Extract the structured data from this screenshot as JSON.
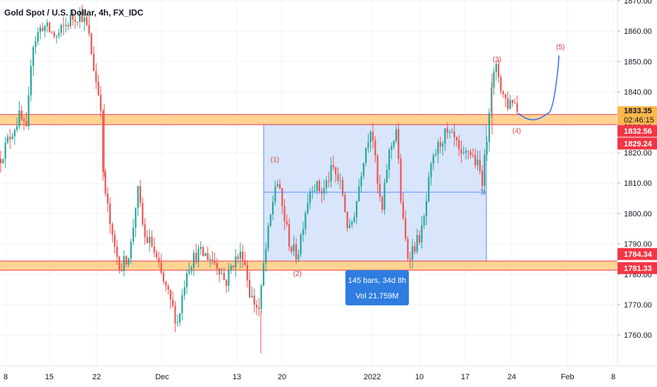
{
  "symbol_title": "Gold Spot / U.S. Dollar, 4h, FX_IDC",
  "chart_data": {
    "type": "candlestick",
    "ylim": [
      1751,
      1871
    ],
    "y_ticks": [
      1760,
      1770,
      1780,
      1790,
      1800,
      1810,
      1820,
      1830,
      1840,
      1850,
      1860,
      1870
    ],
    "y_tick_labels": [
      "1760.00",
      "1770.00",
      "1780.00",
      "1790.00",
      "1800.00",
      "1810.00",
      "1820.00",
      "1830.00",
      "1840.00",
      "1850.00",
      "1860.00",
      "1870.00"
    ],
    "x_ticks": [
      {
        "label": "8"
      },
      {
        "label": "15"
      },
      {
        "label": "22"
      },
      {
        "label": "Dec"
      },
      {
        "label": "13"
      },
      {
        "label": "20"
      },
      {
        "label": "2022"
      },
      {
        "label": "10"
      },
      {
        "label": "17"
      },
      {
        "label": "24"
      },
      {
        "label": "Feb"
      },
      {
        "label": "8"
      }
    ],
    "price_path": [
      {
        "x": 0,
        "y": 1818
      },
      {
        "x": 15,
        "y": 1826
      },
      {
        "x": 28,
        "y": 1832
      },
      {
        "x": 38,
        "y": 1826
      },
      {
        "x": 45,
        "y": 1855
      },
      {
        "x": 60,
        "y": 1862
      },
      {
        "x": 80,
        "y": 1858
      },
      {
        "x": 100,
        "y": 1864
      },
      {
        "x": 115,
        "y": 1866
      },
      {
        "x": 125,
        "y": 1860
      },
      {
        "x": 135,
        "y": 1845
      },
      {
        "x": 143,
        "y": 1836
      },
      {
        "x": 146,
        "y": 1812
      },
      {
        "x": 152,
        "y": 1803
      },
      {
        "x": 160,
        "y": 1790
      },
      {
        "x": 172,
        "y": 1782
      },
      {
        "x": 185,
        "y": 1788
      },
      {
        "x": 195,
        "y": 1808
      },
      {
        "x": 205,
        "y": 1792
      },
      {
        "x": 215,
        "y": 1790
      },
      {
        "x": 225,
        "y": 1782
      },
      {
        "x": 240,
        "y": 1772
      },
      {
        "x": 252,
        "y": 1764
      },
      {
        "x": 265,
        "y": 1782
      },
      {
        "x": 280,
        "y": 1787
      },
      {
        "x": 295,
        "y": 1786
      },
      {
        "x": 310,
        "y": 1783
      },
      {
        "x": 320,
        "y": 1777
      },
      {
        "x": 330,
        "y": 1784
      },
      {
        "x": 345,
        "y": 1787
      },
      {
        "x": 355,
        "y": 1773
      },
      {
        "x": 368,
        "y": 1768
      },
      {
        "x": 374,
        "y": 1783
      },
      {
        "x": 382,
        "y": 1796
      },
      {
        "x": 392,
        "y": 1812
      },
      {
        "x": 402,
        "y": 1800
      },
      {
        "x": 412,
        "y": 1789
      },
      {
        "x": 422,
        "y": 1786
      },
      {
        "x": 432,
        "y": 1800
      },
      {
        "x": 442,
        "y": 1810
      },
      {
        "x": 458,
        "y": 1807
      },
      {
        "x": 472,
        "y": 1815
      },
      {
        "x": 485,
        "y": 1808
      },
      {
        "x": 495,
        "y": 1793
      },
      {
        "x": 505,
        "y": 1803
      },
      {
        "x": 515,
        "y": 1818
      },
      {
        "x": 527,
        "y": 1830
      },
      {
        "x": 535,
        "y": 1810
      },
      {
        "x": 542,
        "y": 1800
      },
      {
        "x": 550,
        "y": 1818
      },
      {
        "x": 562,
        "y": 1828
      },
      {
        "x": 570,
        "y": 1800
      },
      {
        "x": 578,
        "y": 1786
      },
      {
        "x": 590,
        "y": 1790
      },
      {
        "x": 600,
        "y": 1795
      },
      {
        "x": 610,
        "y": 1813
      },
      {
        "x": 618,
        "y": 1820
      },
      {
        "x": 630,
        "y": 1826
      },
      {
        "x": 645,
        "y": 1824
      },
      {
        "x": 655,
        "y": 1817
      },
      {
        "x": 665,
        "y": 1821
      },
      {
        "x": 675,
        "y": 1817
      },
      {
        "x": 685,
        "y": 1811
      },
      {
        "x": 691,
        "y": 1826
      },
      {
        "x": 696,
        "y": 1842
      },
      {
        "x": 705,
        "y": 1848
      },
      {
        "x": 712,
        "y": 1840
      },
      {
        "x": 720,
        "y": 1836
      },
      {
        "x": 728,
        "y": 1838
      },
      {
        "x": 735,
        "y": 1833
      }
    ],
    "projection_path": [
      {
        "x": 735,
        "y": 1833
      },
      {
        "x": 757,
        "y": 1830
      },
      {
        "x": 778,
        "y": 1833
      },
      {
        "x": 788,
        "y": 1843
      },
      {
        "x": 793,
        "y": 1852
      }
    ],
    "zones": [
      {
        "name": "resistance",
        "y_low": 1829.24,
        "y_high": 1832.56
      },
      {
        "name": "support",
        "y_low": 1781.33,
        "y_high": 1784.34
      }
    ],
    "range_box": {
      "y_low": 1784.34,
      "y_high": 1829.24,
      "x_mid_level": 1807
    },
    "annotations": [
      {
        "label": "(1)",
        "price": 1817,
        "x": 390
      },
      {
        "label": "(2)",
        "price": 1779.5,
        "x": 422
      },
      {
        "label": "(3)",
        "price": 1850,
        "x": 705
      },
      {
        "label": "(4)",
        "price": 1826.5,
        "x": 733
      },
      {
        "label": "(5)",
        "price": 1854,
        "x": 795
      }
    ],
    "price_tags": [
      {
        "value": "1833.35",
        "sub": "02:46:15",
        "kind": "last",
        "color": "#ffb74d"
      },
      {
        "value": "1832.56",
        "kind": "level",
        "color": "#f23645"
      },
      {
        "value": "1829.24",
        "kind": "level",
        "color": "#f23645"
      },
      {
        "value": "1784.34",
        "kind": "level",
        "color": "#f23645"
      },
      {
        "value": "1781.33",
        "kind": "level",
        "color": "#f23645"
      }
    ],
    "measure_tooltip": {
      "line1": "145 bars, 34d 8h",
      "line2": "Vol 21.759M"
    },
    "colors": {
      "up": "#26a69a",
      "down": "#ef5350",
      "zone_fill": "#ffcc80",
      "zone_border": "#f23645",
      "range_fill": "#d6e4fb",
      "range_border": "#5b8dee",
      "projection": "#2962ff",
      "tooltip_bg": "#2f7de1"
    }
  }
}
